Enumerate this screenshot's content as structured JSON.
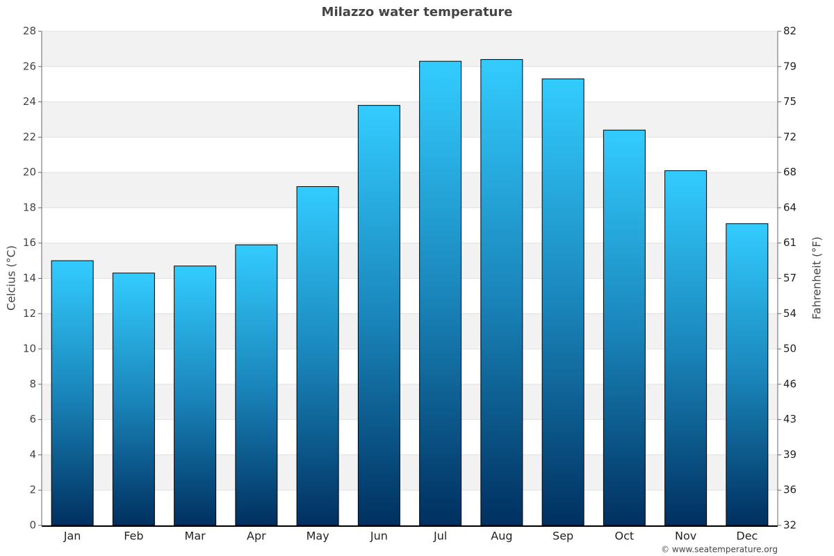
{
  "chart_data": {
    "type": "bar",
    "title": "Milazzo water temperature",
    "categories": [
      "Jan",
      "Feb",
      "Mar",
      "Apr",
      "May",
      "Jun",
      "Jul",
      "Aug",
      "Sep",
      "Oct",
      "Nov",
      "Dec"
    ],
    "values": [
      15.0,
      14.3,
      14.7,
      15.9,
      19.2,
      23.8,
      26.3,
      26.4,
      25.3,
      22.4,
      20.1,
      17.1
    ],
    "color": "#33ccff",
    "ylabel": "Celcius (°C)",
    "y2label": "Fahrenheit (°F)",
    "ylim": [
      0,
      28
    ],
    "yticks": [
      0,
      2,
      4,
      6,
      8,
      10,
      12,
      14,
      16,
      18,
      20,
      22,
      24,
      26,
      28
    ],
    "y2lim": [
      32,
      82.4
    ],
    "y2ticks": [
      32,
      {
        "value": 35.6,
        "label": "36"
      },
      {
        "value": 39.2,
        "label": "39"
      },
      {
        "value": 42.8,
        "label": "43"
      },
      {
        "value": 46.4,
        "label": "46"
      },
      50,
      {
        "value": 53.6,
        "label": "54"
      },
      {
        "value": 57.2,
        "label": "57"
      },
      {
        "value": 60.8,
        "label": "61"
      },
      {
        "value": 64.4,
        "label": "64"
      },
      68,
      {
        "value": 71.6,
        "label": "72"
      },
      {
        "value": 75.2,
        "label": "75"
      },
      {
        "value": 78.8,
        "label": "79"
      },
      {
        "value": 82.4,
        "label": "82"
      }
    ],
    "grid": true,
    "credit": "© www.seatemperature.org"
  }
}
